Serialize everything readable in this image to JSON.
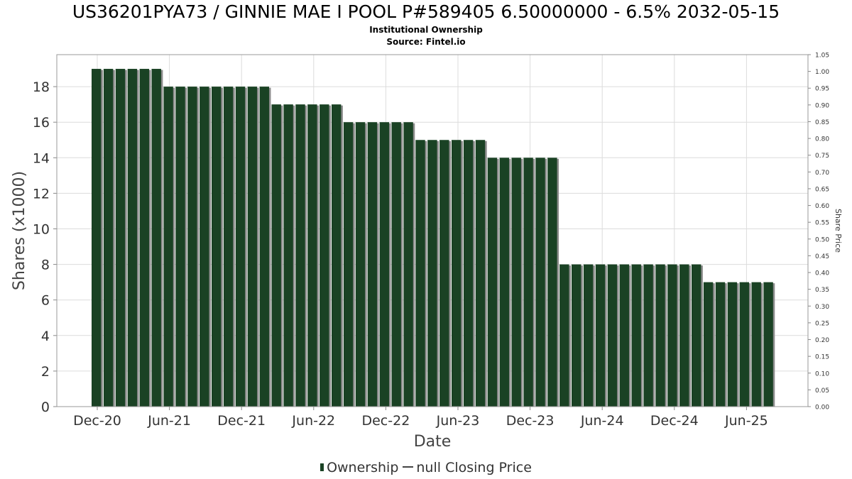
{
  "title": "US36201PYA73 / GINNIE MAE I POOL P#589405 6.50000000 - 6.5% 2032-05-15",
  "subtitle1": "Institutional Ownership",
  "subtitle2": "Source: Fintel.io",
  "legend": {
    "ownership": "Ownership",
    "price": "null Closing Price"
  },
  "colors": {
    "bar": "#1a4224",
    "bar_shadow": "#8c8c8c",
    "grid": "#dcdcdc"
  },
  "chart_data": {
    "type": "bar",
    "xlabel": "Date",
    "ylabel": "Shares (x1000)",
    "y2label": "Share Price",
    "ylim": [
      0,
      19.8
    ],
    "y_ticks": [
      0,
      2,
      4,
      6,
      8,
      10,
      12,
      14,
      16,
      18
    ],
    "y2lim": [
      0,
      1.05
    ],
    "y2_ticks": [
      "0.00",
      "0.05",
      "0.10",
      "0.15",
      "0.20",
      "0.25",
      "0.30",
      "0.35",
      "0.40",
      "0.45",
      "0.50",
      "0.55",
      "0.60",
      "0.65",
      "0.70",
      "0.75",
      "0.80",
      "0.85",
      "0.90",
      "0.95",
      "1.00",
      "1.05"
    ],
    "x_ticks": [
      "Dec-20",
      "Jun-21",
      "Dec-21",
      "Jun-22",
      "Dec-22",
      "Jun-23",
      "Dec-23",
      "Jun-24",
      "Dec-24",
      "Jun-25"
    ],
    "grid": true,
    "legend_position": "bottom",
    "series": [
      {
        "name": "Ownership",
        "values": [
          19,
          19,
          19,
          19,
          19,
          19,
          18,
          18,
          18,
          18,
          18,
          18,
          18,
          18,
          18,
          17,
          17,
          17,
          17,
          17,
          17,
          16,
          16,
          16,
          16,
          16,
          16,
          15,
          15,
          15,
          15,
          15,
          15,
          14,
          14,
          14,
          14,
          14,
          14,
          8,
          8,
          8,
          8,
          8,
          8,
          8,
          8,
          8,
          8,
          8,
          8,
          7,
          7,
          7,
          7,
          7,
          7
        ]
      }
    ]
  }
}
